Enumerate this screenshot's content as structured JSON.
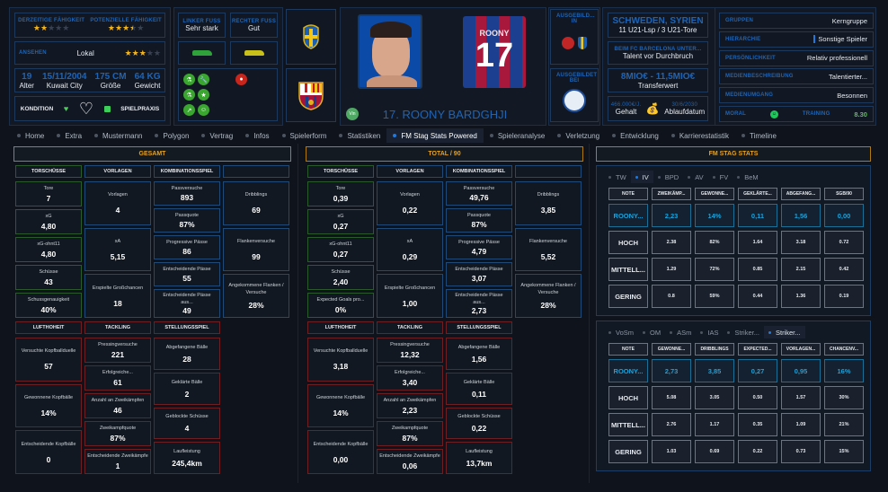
{
  "player": {
    "current_ability": {
      "label": "DERZEITIGE FÄHIGKEIT",
      "stars": 2,
      "max": 5
    },
    "potential_ability": {
      "label": "POTENZIELLE FÄHIGKEIT",
      "stars": 3.5,
      "max": 5
    },
    "reputation": {
      "label": "ANSEHEN",
      "value": "Lokal",
      "stars": 3,
      "max": 5
    },
    "bio": [
      {
        "value": "19",
        "label": "Alter"
      },
      {
        "value": "15/11/2004",
        "label": "Kuwait City"
      },
      {
        "value": "175 CM",
        "label": "Größe"
      },
      {
        "value": "64 KG",
        "label": "Gewicht"
      }
    ],
    "condition_label": "KONDITION",
    "match_practice_label": "SPIELPRAXIS",
    "left_foot": {
      "label": "LINKER FUSS",
      "value": "Sehr stark"
    },
    "right_foot": {
      "label": "RECHTER FUSS",
      "value": "Gut"
    },
    "name": "17. ROONY BARDGHJI",
    "shirt_name": "ROONY",
    "shirt_number": "17",
    "badge": "Vin",
    "trained_in_label": "AUSGEBILD... IN",
    "trained_at_label": "AUSGEBILDET BEI",
    "nationality": {
      "title": "SCHWEDEN, SYRIEN",
      "value": "11 U21-Lsp / 3 U21-Tore"
    },
    "club_status": {
      "title": "BEIM FC BARCELONA UNTER...",
      "value": "Talent vor Durchbruch"
    },
    "transfer_value": {
      "title": "8MIO€ - 11,5MIO€",
      "value": "Transferwert"
    },
    "contract": {
      "wage": "466.000€/J.",
      "wage_label": "Gehalt",
      "expiry": "30/6/2030",
      "expiry_label": "Ablaufdatum"
    },
    "attributes": [
      {
        "label": "GRUPPEN",
        "value": "Kerngruppe"
      },
      {
        "label": "HIERARCHIE",
        "value": "Sonstige Spieler"
      },
      {
        "label": "PERSÖNLICHKEIT",
        "value": "Relativ professionell"
      },
      {
        "label": "MEDIENBESCHREIBUNG",
        "value": "Talentierter..."
      },
      {
        "label": "MEDIENUMGANG",
        "value": "Besonnen"
      }
    ],
    "morale_label": "MORAL",
    "training_label": "TRAINING",
    "training_value": "8.30",
    "colors": {
      "accent": "#1f64b4",
      "gold": "#e8a21a",
      "training": "#4ccf3a"
    }
  },
  "nav": {
    "active": 8,
    "tabs": [
      "Home",
      "Extra",
      "Mustermann",
      "Polygon",
      "Vertrag",
      "Infos",
      "Spielerform",
      "Statistiken",
      "FM Stag Stats Powered",
      "Spieleranalyse",
      "Verletzung",
      "Entwicklung",
      "Karrierestatistik",
      "Timeline"
    ]
  },
  "sections": [
    {
      "title": "GESAMT",
      "top": [
        {
          "header": "TORSCHÜSSE",
          "tone": "green",
          "items": [
            {
              "label": "Tore",
              "value": "7"
            },
            {
              "label": "xG",
              "value": "4,80"
            },
            {
              "label": "xG-ohnt11",
              "value": "4,80"
            },
            {
              "label": "Schüsse",
              "value": "43"
            },
            {
              "label": "Schussgenauigkeit",
              "value": "40%"
            }
          ]
        },
        {
          "header": "VORLAGEN",
          "tone": "blue",
          "items": [
            {
              "label": "Vorlagen",
              "value": "4"
            },
            {
              "label": "xA",
              "value": "5,15"
            },
            {
              "label": "Erspielte Großchancen",
              "value": "18"
            }
          ]
        },
        {
          "header": "KOMBINATIONSSPIEL",
          "tone": "blue",
          "items": [
            {
              "label": "Passversuche",
              "value": "893"
            },
            {
              "label": "Passquote",
              "value": "87%"
            },
            {
              "label": "Progressive Pässe",
              "value": "86"
            },
            {
              "label": "Entscheidende Pässe",
              "value": "55"
            },
            {
              "label": "Entscheidende Pässe aus...",
              "value": "49"
            }
          ]
        },
        {
          "header": "",
          "tone": "blue",
          "items": [
            {
              "label": "Dribblings",
              "value": "69"
            },
            {
              "label": "Flankenversuche",
              "value": "99"
            },
            {
              "label": "Angekommene Flanken / Versuche",
              "value": "28%"
            }
          ]
        }
      ],
      "bottom": [
        {
          "header": "LUFTHOHEIT",
          "tone": "red",
          "items": [
            {
              "label": "Versuchte Kopfballduelle",
              "value": "57"
            },
            {
              "label": "Gewonnene Kopfbälle",
              "value": "14%"
            },
            {
              "label": "Entscheidende Kopfbälle",
              "value": "0"
            }
          ]
        },
        {
          "header": "TACKLING",
          "tone": "red",
          "items": [
            {
              "label": "Pressingversuche",
              "value": "221"
            },
            {
              "label": "Erfolgreiche...",
              "value": "61"
            },
            {
              "label": "Anzahl an Zweikämpfen",
              "value": "46"
            },
            {
              "label": "Zweikampfquote",
              "value": "87%"
            },
            {
              "label": "Entscheidende Zweikämpfe",
              "value": "1"
            }
          ]
        },
        {
          "header": "STELLUNGSSPIEL",
          "tone": "red",
          "items": [
            {
              "label": "Abgefangene Bälle",
              "value": "28"
            },
            {
              "label": "Geklärte Bälle",
              "value": "2"
            },
            {
              "label": "Geblockte Schüsse",
              "value": "4"
            },
            {
              "label": "Laufleistung",
              "value": "245,4km"
            }
          ]
        }
      ]
    },
    {
      "title": "TOTAL / 90",
      "top": [
        {
          "header": "TORSCHÜSSE",
          "tone": "green",
          "items": [
            {
              "label": "Tore",
              "value": "0,39"
            },
            {
              "label": "xG",
              "value": "0,27"
            },
            {
              "label": "xG-ohnt11",
              "value": "0,27"
            },
            {
              "label": "Schüsse",
              "value": "2,40"
            },
            {
              "label": "Expected Goals pro...",
              "value": "0%"
            }
          ]
        },
        {
          "header": "VORLAGEN",
          "tone": "blue",
          "items": [
            {
              "label": "Vorlagen",
              "value": "0,22"
            },
            {
              "label": "xA",
              "value": "0,29"
            },
            {
              "label": "Erspielte Großchancen",
              "value": "1,00"
            }
          ]
        },
        {
          "header": "KOMBINATIONSSPIEL",
          "tone": "blue",
          "items": [
            {
              "label": "Passversuche",
              "value": "49,76"
            },
            {
              "label": "Passquote",
              "value": "87%"
            },
            {
              "label": "Progressive Pässe",
              "value": "4,79"
            },
            {
              "label": "Entscheidende Pässe",
              "value": "3,07"
            },
            {
              "label": "Entscheidende Pässe aus...",
              "value": "2,73"
            }
          ]
        },
        {
          "header": "",
          "tone": "blue",
          "items": [
            {
              "label": "Dribblings",
              "value": "3,85"
            },
            {
              "label": "Flankenversuche",
              "value": "5,52"
            },
            {
              "label": "Angekommene Flanken / Versuche",
              "value": "28%"
            }
          ]
        }
      ],
      "bottom": [
        {
          "header": "LUFTHOHEIT",
          "tone": "red",
          "items": [
            {
              "label": "Versuchte Kopfballduelle",
              "value": "3,18"
            },
            {
              "label": "Gewonnene Kopfbälle",
              "value": "14%"
            },
            {
              "label": "Entscheidende Kopfbälle",
              "value": "0,00"
            }
          ]
        },
        {
          "header": "TACKLING",
          "tone": "red",
          "items": [
            {
              "label": "Pressingversuche",
              "value": "12,32"
            },
            {
              "label": "Erfolgreiche...",
              "value": "3,40"
            },
            {
              "label": "Anzahl an Zweikämpfen",
              "value": "2,23"
            },
            {
              "label": "Zweikampfquote",
              "value": "87%"
            },
            {
              "label": "Entscheidende Zweikämpfe",
              "value": "0,06"
            }
          ]
        },
        {
          "header": "STELLUNGSSPIEL",
          "tone": "red",
          "items": [
            {
              "label": "Abgefangene Bälle",
              "value": "1,56"
            },
            {
              "label": "Geklärte Bälle",
              "value": "0,11"
            },
            {
              "label": "Geblockte Schüsse",
              "value": "0,22"
            },
            {
              "label": "Laufleistung",
              "value": "13,7km"
            }
          ]
        }
      ]
    }
  ],
  "stag": {
    "title": "FM STAG STATS",
    "tables": [
      {
        "tabs": [
          "TW",
          "IV",
          "BPD",
          "AV",
          "FV",
          "BeM"
        ],
        "active": 1,
        "columns": [
          "NOTE",
          "ZWEIKÄMP...",
          "GEWONNE...",
          "GEKLÄRTE...",
          "ABGEFANG...",
          "SGB/90"
        ],
        "rows": [
          {
            "note": "ROONY...",
            "values": [
              "2,23",
              "14%",
              "0,11",
              "1,56",
              "0,00"
            ]
          },
          {
            "note": "HOCH",
            "values": [
              "2.38",
              "82%",
              "1.64",
              "3.18",
              "0.72"
            ]
          },
          {
            "note": "MITTELL...",
            "values": [
              "1.29",
              "72%",
              "0.85",
              "2.15",
              "0.42"
            ]
          },
          {
            "note": "GERING",
            "values": [
              "0.8",
              "59%",
              "0.44",
              "1.36",
              "0.19"
            ]
          }
        ]
      },
      {
        "tabs": [
          "VoSm",
          "OM",
          "ASm",
          "IAS",
          "Striker...",
          "Striker..."
        ],
        "active": 5,
        "columns": [
          "NOTE",
          "GEWONNE...",
          "DRIBBLINGS",
          "EXPECTED...",
          "VORLAGEN...",
          "CHANCENV..."
        ],
        "rows": [
          {
            "note": "ROONY...",
            "values": [
              "2,73",
              "3,85",
              "0,27",
              "0,95",
              "16%"
            ]
          },
          {
            "note": "HOCH",
            "values": [
              "5.08",
              "3.05",
              "0.50",
              "1.57",
              "30%"
            ]
          },
          {
            "note": "MITTELL...",
            "values": [
              "2.76",
              "1.17",
              "0.35",
              "1.09",
              "21%"
            ]
          },
          {
            "note": "GERING",
            "values": [
              "1.03",
              "0.69",
              "0.22",
              "0.73",
              "15%"
            ]
          }
        ]
      }
    ]
  }
}
